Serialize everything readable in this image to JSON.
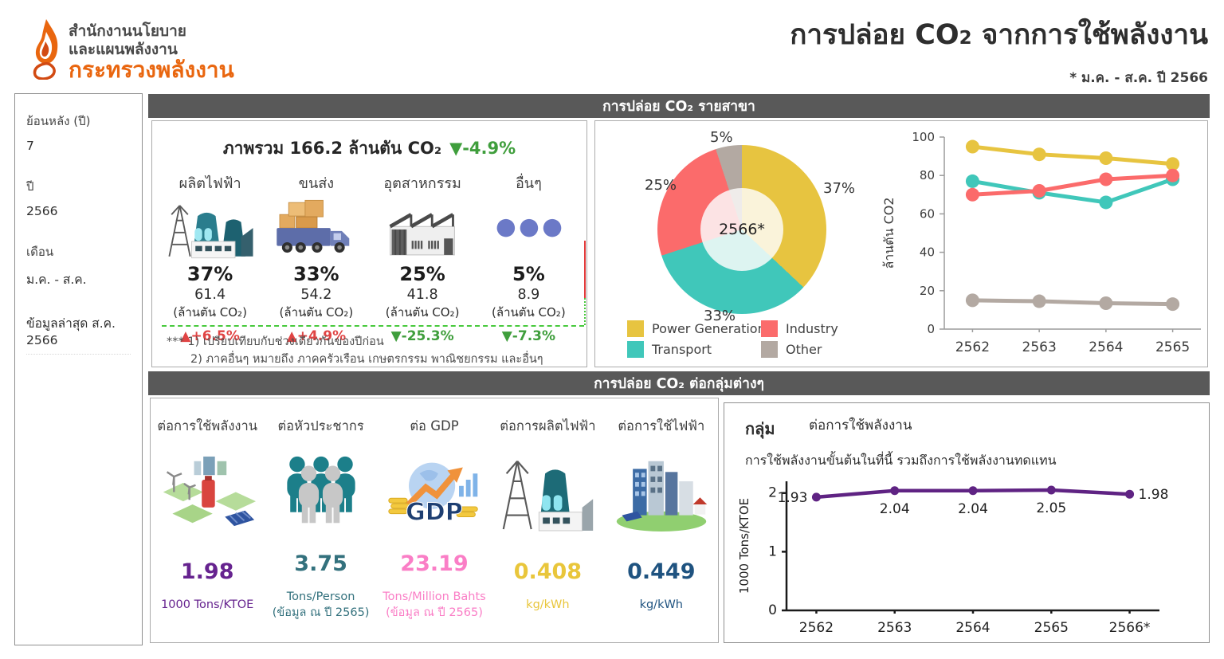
{
  "header": {
    "org_line1": "สำนักงานนโยบาย",
    "org_line2": "และแผนพลังงาน",
    "org_line3": "กระทรวงพลังงาน",
    "title_main": "การปล่อย CO",
    "title_sub": "2",
    "title_rest": " จากการใช้พลังงาน",
    "subtitle": "* ม.ค. - ส.ค. ปี 2566"
  },
  "sidebar": {
    "filters": [
      {
        "label": "ย้อนหลัง (ปี)",
        "value": "7"
      },
      {
        "label": "ปี",
        "value": "2566"
      },
      {
        "label": "เดือน",
        "value": "ม.ค. - ส.ค."
      }
    ],
    "last_updated": "ข้อมูลล่าสุด ส.ค. 2566"
  },
  "sector_panel": {
    "header": "การปล่อย CO₂ รายสาขา",
    "overview_prefix": "ภาพรวม 166.2 ล้านตัน CO₂",
    "overview_change": "▼-4.9%",
    "overview_change_color": "#3f9e3c",
    "sectors": [
      {
        "name": "ผลิตไฟฟ้า",
        "pct": "37%",
        "value": "61.4",
        "unit": "(ล้านตัน CO₂)",
        "change": "▲+6.5%",
        "change_color": "#e04444",
        "icon": "power-plant-icon"
      },
      {
        "name": "ขนส่ง",
        "pct": "33%",
        "value": "54.2",
        "unit": "(ล้านตัน CO₂)",
        "change": "▲+4.9%",
        "change_color": "#e04444",
        "icon": "truck-icon"
      },
      {
        "name": "อุตสาหกรรม",
        "pct": "25%",
        "value": "41.8",
        "unit": "(ล้านตัน CO₂)",
        "change": "▼-25.3%",
        "change_color": "#3f9e3c",
        "icon": "factory-icon"
      },
      {
        "name": "อื่นๆ",
        "pct": "5%",
        "value": "8.9",
        "unit": "(ล้านตัน CO₂)",
        "change": "▼-7.3%",
        "change_color": "#3f9e3c",
        "icon": "dots-icon"
      }
    ],
    "footnote1": "*** 1) เปรียบเทียบกับช่วงเดียวกันของปีก่อน",
    "footnote2": "2) ภาคอื่นๆ หมายถึง ภาคครัวเรือน เกษตรกรรม พาณิชยกรรม และอื่นๆ",
    "legend": [
      {
        "label": "Power Generation",
        "color": "#e7c440"
      },
      {
        "label": "Industry",
        "color": "#fb6b6b"
      },
      {
        "label": "Transport",
        "color": "#40c7ba"
      },
      {
        "label": "Other",
        "color": "#b3a9a2"
      }
    ]
  },
  "group_panel": {
    "header": "การปล่อย CO₂ ต่อกลุ่มต่างๆ",
    "metrics": [
      {
        "label": "ต่อการใช้พลังงาน",
        "value": "1.98",
        "unit": "1000 Tons/KTOE",
        "note": "",
        "color": "#66238f",
        "icon": "energy-use-icon"
      },
      {
        "label": "ต่อหัวประชากร",
        "value": "3.75",
        "unit": "Tons/Person",
        "note": "(ข้อมูล ณ ปี 2565)",
        "color": "#33717d",
        "icon": "population-icon"
      },
      {
        "label": "ต่อ GDP",
        "value": "23.19",
        "unit": "Tons/Million Bahts",
        "note": "(ข้อมูล ณ ปี 2565)",
        "color": "#fa7ec6",
        "icon": "gdp-icon"
      },
      {
        "label": "ต่อการผลิตไฟฟ้า",
        "value": "0.408",
        "unit": "kg/kWh",
        "note": "",
        "color": "#e9c63b",
        "icon": "electricity-production-icon"
      },
      {
        "label": "ต่อการใช้ไฟฟ้า",
        "value": "0.449",
        "unit": "kg/kWh",
        "note": "",
        "color": "#1f5380",
        "icon": "electricity-use-icon"
      }
    ],
    "group_label": "กลุ่ม",
    "group_value": "ต่อการใช้พลังงาน",
    "note": "การใช้พลังงานขั้นต้นในที่นี้ รวมถึงการใช้พลังงานทดแทน",
    "gdp_icon_text": "GDP"
  },
  "chart_data": [
    {
      "id": "sector-share-donut",
      "type": "pie",
      "center_label": "2566*",
      "slices": [
        {
          "name": "Power Generation",
          "label": "37%",
          "value": 37,
          "color": "#e7c440",
          "pale": "#faf3da"
        },
        {
          "name": "Transport",
          "label": "33%",
          "value": 33,
          "color": "#40c7ba",
          "pale": "#ddf4f1"
        },
        {
          "name": "Industry",
          "label": "25%",
          "value": 25,
          "color": "#fb6b6b",
          "pale": "#fce3e4"
        },
        {
          "name": "Other",
          "label": "5%",
          "value": 5,
          "color": "#b3a9a2",
          "pale": "#efecea"
        }
      ]
    },
    {
      "id": "sector-trend",
      "type": "line",
      "x": [
        "2562",
        "2563",
        "2564",
        "2565"
      ],
      "ylabel": "ล้านตัน CO2",
      "ylim": [
        0,
        100
      ],
      "yticks": [
        0,
        20,
        40,
        60,
        80,
        100
      ],
      "series": [
        {
          "name": "Power Generation",
          "color": "#e7c440",
          "values": [
            95,
            91,
            89,
            86
          ]
        },
        {
          "name": "Transport",
          "color": "#40c7ba",
          "values": [
            77,
            71,
            66,
            78
          ]
        },
        {
          "name": "Industry",
          "color": "#fb6b6b",
          "values": [
            70,
            72,
            78,
            80
          ]
        },
        {
          "name": "Other",
          "color": "#b3a9a2",
          "values": [
            15,
            14.5,
            13.5,
            13
          ]
        }
      ]
    },
    {
      "id": "intensity-trend",
      "type": "line",
      "x": [
        "2562",
        "2563",
        "2564",
        "2565",
        "2566*"
      ],
      "ylabel": "1000 Tons/KTOE",
      "ylim": [
        0,
        2.2
      ],
      "yticks": [
        0,
        1,
        2
      ],
      "series": [
        {
          "name": "ต่อการใช้พลังงาน",
          "color": "#5f2383",
          "values": [
            1.93,
            2.04,
            2.04,
            2.05,
            1.98
          ]
        }
      ],
      "point_labels": [
        "1.93",
        "2.04",
        "2.04",
        "2.05",
        "1.98"
      ]
    }
  ]
}
